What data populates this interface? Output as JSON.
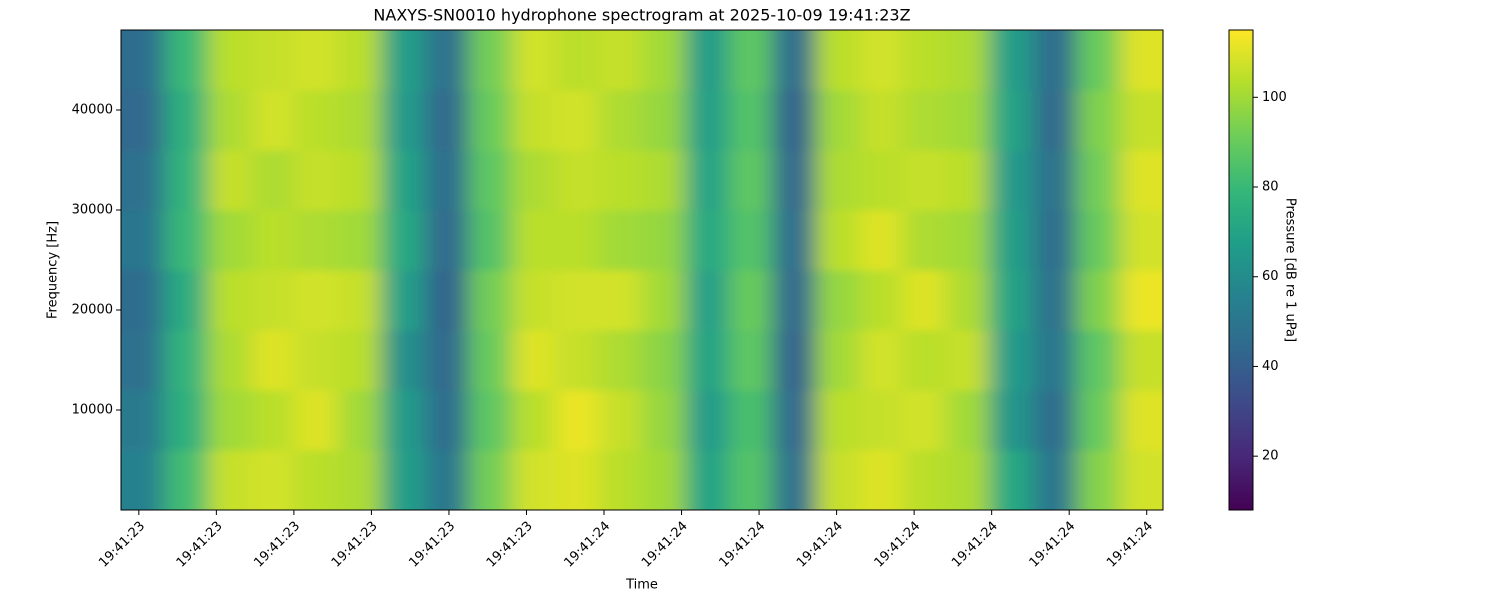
{
  "chart_data": {
    "type": "heatmap",
    "title": "NAXYS-SN0010 hydrophone spectrogram at 2025-10-09 19:41:23Z",
    "xlabel": "Time",
    "ylabel": "Frequency [Hz]",
    "colorbar_label": "Pressure [dB re 1 uPa]",
    "colormap": "viridis",
    "xlim": [
      23.377,
      24.721
    ],
    "ylim": [
      0,
      48000
    ],
    "xticks": [
      {
        "value": 23.4,
        "label": "19:41:23"
      },
      {
        "value": 23.5,
        "label": "19:41:23"
      },
      {
        "value": 23.6,
        "label": "19:41:23"
      },
      {
        "value": 23.7,
        "label": "19:41:23"
      },
      {
        "value": 23.8,
        "label": "19:41:23"
      },
      {
        "value": 23.9,
        "label": "19:41:23"
      },
      {
        "value": 24.0,
        "label": "19:41:24"
      },
      {
        "value": 24.1,
        "label": "19:41:24"
      },
      {
        "value": 24.2,
        "label": "19:41:24"
      },
      {
        "value": 24.3,
        "label": "19:41:24"
      },
      {
        "value": 24.4,
        "label": "19:41:24"
      },
      {
        "value": 24.5,
        "label": "19:41:24"
      },
      {
        "value": 24.6,
        "label": "19:41:24"
      },
      {
        "value": 24.7,
        "label": "19:41:24"
      }
    ],
    "yticks": [
      10000,
      20000,
      30000,
      40000
    ],
    "clim": [
      8,
      115
    ],
    "cticks": [
      20,
      40,
      60,
      80,
      100
    ],
    "xbins": [
      23.377,
      23.433,
      23.489,
      23.545,
      23.601,
      23.657,
      23.713,
      23.769,
      23.825,
      23.881,
      23.937,
      23.993,
      24.049,
      24.105,
      24.161,
      24.217,
      24.273,
      24.329,
      24.385,
      24.441,
      24.497,
      24.553,
      24.609,
      24.665,
      24.721
    ],
    "ybins": [
      0,
      6000,
      12000,
      18000,
      24000,
      30000,
      36000,
      42000,
      48000
    ],
    "z": [
      [
        55,
        82,
        106,
        108,
        104,
        102,
        68,
        50,
        92,
        108,
        110,
        104,
        100,
        70,
        86,
        48,
        106,
        110,
        104,
        102,
        72,
        50,
        95,
        108
      ],
      [
        52,
        76,
        100,
        104,
        110,
        100,
        66,
        46,
        88,
        104,
        112,
        106,
        98,
        66,
        84,
        44,
        104,
        106,
        108,
        100,
        64,
        46,
        90,
        110
      ],
      [
        48,
        78,
        102,
        110,
        106,
        104,
        62,
        44,
        90,
        110,
        106,
        102,
        96,
        70,
        88,
        42,
        100,
        108,
        104,
        106,
        66,
        50,
        88,
        106
      ],
      [
        46,
        74,
        104,
        106,
        108,
        106,
        68,
        42,
        92,
        106,
        108,
        108,
        100,
        68,
        90,
        44,
        98,
        104,
        110,
        102,
        70,
        48,
        94,
        112
      ],
      [
        50,
        80,
        100,
        104,
        102,
        100,
        72,
        44,
        86,
        104,
        104,
        100,
        98,
        72,
        86,
        46,
        104,
        110,
        102,
        100,
        68,
        46,
        90,
        108
      ],
      [
        48,
        78,
        106,
        102,
        106,
        104,
        70,
        46,
        88,
        102,
        106,
        104,
        102,
        70,
        88,
        44,
        102,
        104,
        106,
        104,
        66,
        48,
        92,
        110
      ],
      [
        44,
        76,
        102,
        108,
        104,
        102,
        66,
        44,
        90,
        106,
        108,
        102,
        98,
        68,
        86,
        42,
        100,
        106,
        102,
        100,
        70,
        44,
        94,
        106
      ],
      [
        46,
        80,
        104,
        106,
        108,
        104,
        68,
        48,
        92,
        108,
        104,
        106,
        100,
        66,
        88,
        46,
        104,
        108,
        104,
        102,
        68,
        46,
        90,
        110
      ]
    ]
  }
}
